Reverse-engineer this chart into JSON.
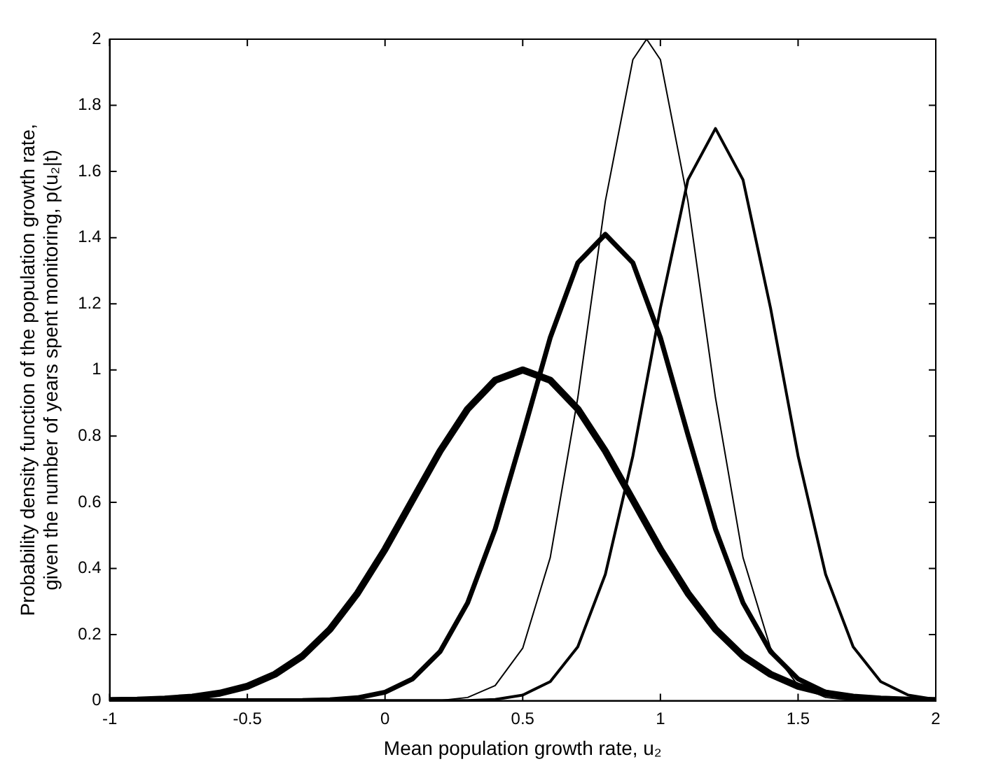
{
  "chart_data": {
    "type": "line",
    "xlabel": "Mean population growth rate, u₂",
    "ylabel": [
      "Probability density function of the population growth rate,",
      "given the number of years spent monitoring, p(u₂|t)"
    ],
    "xlim": [
      -1,
      2
    ],
    "xticks": [
      -1,
      -0.5,
      0,
      0.5,
      1,
      1.5,
      2
    ],
    "ylim": [
      0,
      2
    ],
    "yticks": [
      0,
      0.2,
      0.4,
      0.6,
      0.8,
      1,
      1.2,
      1.4,
      1.6,
      1.8,
      2
    ],
    "grid": false,
    "legend": false,
    "marker": "none",
    "line_style": "solid",
    "series": [
      {
        "color": "#000000",
        "x": [
          -1,
          -0.9,
          -0.8,
          -0.7,
          -0.6,
          -0.5,
          -0.4,
          -0.3,
          -0.2,
          -0.1,
          0,
          0.1,
          0.2,
          0.3,
          0.4,
          0.5,
          0.6,
          0.7,
          0.8,
          0.9,
          1,
          1.1,
          1.2,
          1.3,
          1.4,
          1.5,
          1.6,
          1.7,
          1.8,
          1.9,
          2
        ],
        "values": [
          0.001,
          0.002,
          0.005,
          0.011,
          0.023,
          0.044,
          0.08,
          0.135,
          0.216,
          0.325,
          0.458,
          0.607,
          0.755,
          0.882,
          0.969,
          1,
          0.969,
          0.882,
          0.755,
          0.607,
          0.458,
          0.325,
          0.216,
          0.135,
          0.08,
          0.044,
          0.023,
          0.011,
          0.005,
          0.002,
          0.001
        ]
      },
      {
        "color": "#000000",
        "x": [
          -1,
          -0.3,
          -0.2,
          -0.1,
          0,
          0.1,
          0.2,
          0.3,
          0.4,
          0.5,
          0.6,
          0.7,
          0.8,
          0.9,
          1,
          1.1,
          1.2,
          1.3,
          1.4,
          1.5,
          1.6,
          1.7,
          1.8,
          1.9,
          2
        ],
        "values": [
          0,
          0.001,
          0.003,
          0.009,
          0.026,
          0.066,
          0.149,
          0.296,
          0.519,
          0.804,
          1.098,
          1.324,
          1.41,
          1.324,
          1.098,
          0.804,
          0.519,
          0.296,
          0.149,
          0.066,
          0.026,
          0.009,
          0.003,
          0.001,
          0
        ]
      },
      {
        "color": "#000000",
        "x": [
          -1,
          0.3,
          0.4,
          0.5,
          0.6,
          0.7,
          0.8,
          0.9,
          1,
          1.1,
          1.2,
          1.3,
          1.4,
          1.5,
          1.6,
          1.7,
          1.8,
          1.9,
          2
        ],
        "values": [
          0,
          0.001,
          0.004,
          0.017,
          0.058,
          0.163,
          0.382,
          0.74,
          1.187,
          1.575,
          1.73,
          1.575,
          1.187,
          0.74,
          0.382,
          0.163,
          0.058,
          0.017,
          0.004
        ]
      },
      {
        "color": "#000000",
        "x": [
          -1,
          0.2,
          0.3,
          0.4,
          0.5,
          0.6,
          0.7,
          0.8,
          0.9,
          0.95,
          1,
          1.1,
          1.2,
          1.3,
          1.4,
          1.5,
          1.6,
          1.7,
          2
        ],
        "values": [
          0,
          0.001,
          0.01,
          0.046,
          0.159,
          0.433,
          0.916,
          1.51,
          1.938,
          2,
          1.938,
          1.51,
          0.916,
          0.433,
          0.159,
          0.046,
          0.01,
          0.001,
          0
        ]
      }
    ]
  }
}
